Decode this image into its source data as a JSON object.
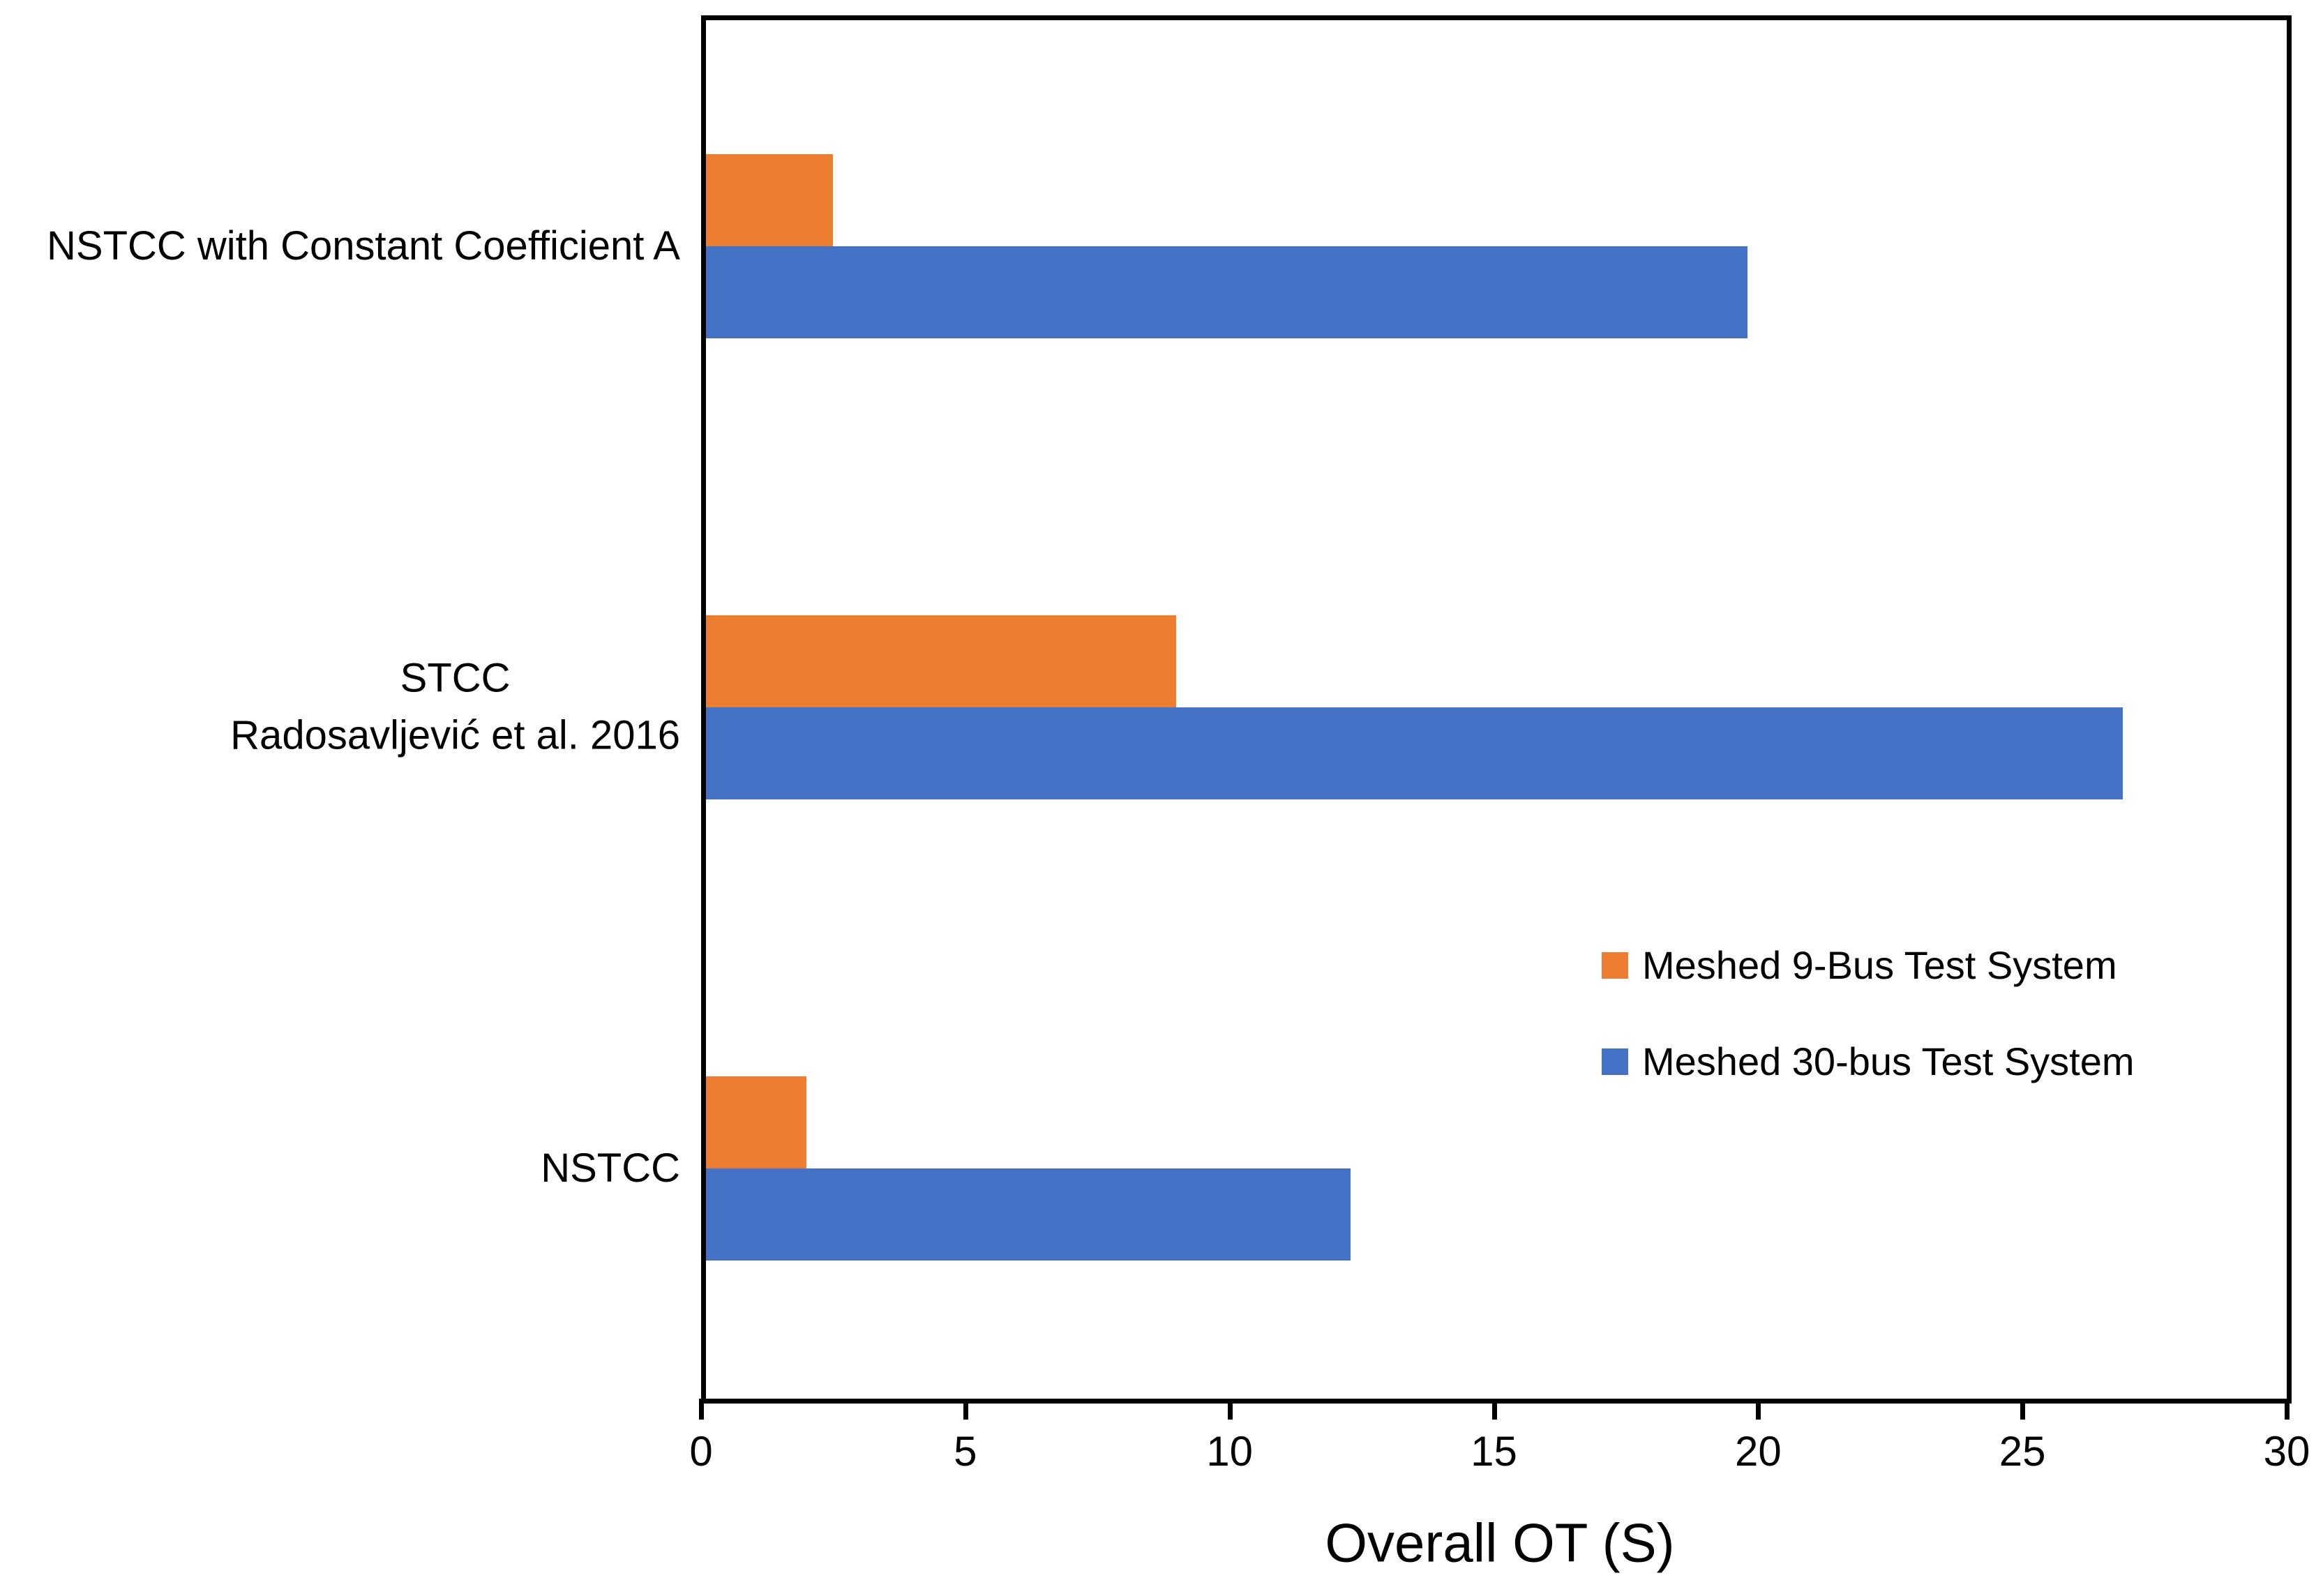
{
  "chart_data": {
    "type": "bar",
    "orientation": "horizontal",
    "title": "",
    "xlabel": "Overall OT (S)",
    "ylabel": "",
    "xlim": [
      0,
      30
    ],
    "xticks": [
      0,
      5,
      10,
      15,
      20,
      25,
      30
    ],
    "grid": false,
    "legend_position": "inside-right",
    "axis_color": "#000000",
    "background_color": "#ffffff",
    "categories": [
      {
        "lines": [
          "NSTCC with Constant Coefficient A"
        ]
      },
      {
        "lines": [
          "STCC",
          "Radosavljević et al. 2016"
        ]
      },
      {
        "lines": [
          "NSTCC"
        ]
      }
    ],
    "series": [
      {
        "name": "Meshed 9-Bus Test System",
        "color": "#ED7D31",
        "values": [
          2.4,
          8.9,
          1.9
        ]
      },
      {
        "name": "Meshed 30-bus Test System",
        "color": "#4472C4",
        "values": [
          19.7,
          26.8,
          12.2
        ]
      }
    ]
  }
}
